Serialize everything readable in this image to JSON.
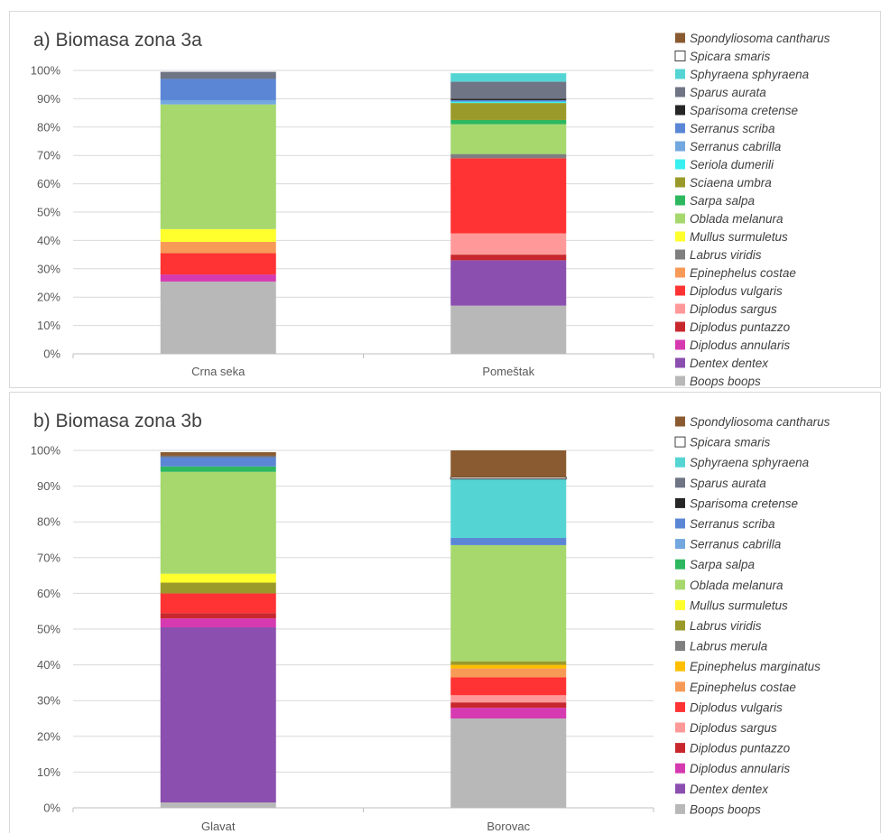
{
  "chart_data": [
    {
      "type": "bar",
      "stacked": true,
      "percent": true,
      "title": "a) Biomasa zona 3a",
      "categories": [
        "Crna seka",
        "Pomeštak"
      ],
      "ylim": [
        0,
        100
      ],
      "yticks": [
        "0%",
        "10%",
        "20%",
        "30%",
        "40%",
        "50%",
        "60%",
        "70%",
        "80%",
        "90%",
        "100%"
      ],
      "grid": true,
      "legend_position": "right",
      "series": [
        {
          "name": "Boops boops",
          "color": "#b8b8b8",
          "values": [
            25.5,
            17
          ]
        },
        {
          "name": "Dentex dentex",
          "color": "#8b4fb0",
          "values": [
            0,
            16
          ]
        },
        {
          "name": "Diplodus annularis",
          "color": "#d63ab0",
          "values": [
            2.5,
            0
          ]
        },
        {
          "name": "Diplodus puntazzo",
          "color": "#c8282d",
          "values": [
            0,
            2
          ]
        },
        {
          "name": "Diplodus sargus",
          "color": "#ff9999",
          "values": [
            0,
            7.5
          ]
        },
        {
          "name": "Diplodus vulgaris",
          "color": "#ff3333",
          "values": [
            7.5,
            26.5
          ]
        },
        {
          "name": "Epinephelus costae",
          "color": "#f79a58",
          "values": [
            4,
            0
          ]
        },
        {
          "name": "Labrus viridis",
          "color": "#7f7f7f",
          "values": [
            0,
            1.5
          ]
        },
        {
          "name": "Mullus surmuletus",
          "color": "#ffff2e",
          "values": [
            4.5,
            0
          ]
        },
        {
          "name": "Oblada melanura",
          "color": "#a6d86e",
          "values": [
            44,
            10.5
          ]
        },
        {
          "name": "Sarpa salpa",
          "color": "#2db860",
          "values": [
            0,
            1.5
          ]
        },
        {
          "name": "Sciaena umbra",
          "color": "#9a9a2a",
          "values": [
            0,
            6
          ]
        },
        {
          "name": "Seriola dumerili",
          "color": "#38f0f0",
          "values": [
            0,
            0.5
          ]
        },
        {
          "name": "Serranus cabrilla",
          "color": "#72a7e0",
          "values": [
            1.5,
            0
          ]
        },
        {
          "name": "Serranus scriba",
          "color": "#5b86d6",
          "values": [
            7.5,
            0.5
          ]
        },
        {
          "name": "Sparisoma cretense",
          "color": "#262626",
          "values": [
            0,
            0.5
          ]
        },
        {
          "name": "Sparus aurata",
          "color": "#6f7585",
          "values": [
            2.5,
            6
          ]
        },
        {
          "name": "Sphyraena sphyraena",
          "color": "#55d4d4",
          "values": [
            0,
            3
          ]
        },
        {
          "name": "Spicara smaris",
          "color": "#ffffff",
          "values": [
            0,
            0
          ]
        },
        {
          "name": "Spondyliosoma cantharus",
          "color": "#8a5a30",
          "values": [
            0,
            0
          ]
        }
      ]
    },
    {
      "type": "bar",
      "stacked": true,
      "percent": true,
      "title": "b) Biomasa zona 3b",
      "categories": [
        "Glavat",
        "Borovac"
      ],
      "ylim": [
        0,
        100
      ],
      "yticks": [
        "0%",
        "10%",
        "20%",
        "30%",
        "40%",
        "50%",
        "60%",
        "70%",
        "80%",
        "90%",
        "100%"
      ],
      "grid": true,
      "legend_position": "right",
      "series": [
        {
          "name": "Boops boops",
          "color": "#b8b8b8",
          "values": [
            1.5,
            25
          ]
        },
        {
          "name": "Dentex dentex",
          "color": "#8b4fb0",
          "values": [
            49,
            0
          ]
        },
        {
          "name": "Diplodus annularis",
          "color": "#d63ab0",
          "values": [
            2.5,
            3
          ]
        },
        {
          "name": "Diplodus puntazzo",
          "color": "#c8282d",
          "values": [
            1.5,
            1.5
          ]
        },
        {
          "name": "Diplodus sargus",
          "color": "#ff9999",
          "values": [
            0,
            2
          ]
        },
        {
          "name": "Diplodus vulgaris",
          "color": "#ff3333",
          "values": [
            5.5,
            5
          ]
        },
        {
          "name": "Epinephelus costae",
          "color": "#f79a58",
          "values": [
            0,
            2.5
          ]
        },
        {
          "name": "Epinephelus marginatus",
          "color": "#ffbf00",
          "values": [
            0,
            1
          ]
        },
        {
          "name": "Labrus merula",
          "color": "#7f7f7f",
          "values": [
            0,
            0
          ]
        },
        {
          "name": "Labrus viridis",
          "color": "#9a9a2a",
          "values": [
            3,
            1
          ]
        },
        {
          "name": "Mullus surmuletus",
          "color": "#ffff2e",
          "values": [
            2.5,
            0
          ]
        },
        {
          "name": "Oblada melanura",
          "color": "#a6d86e",
          "values": [
            28.5,
            32.5
          ]
        },
        {
          "name": "Sarpa salpa",
          "color": "#2db860",
          "values": [
            1.5,
            0
          ]
        },
        {
          "name": "Serranus cabrilla",
          "color": "#72a7e0",
          "values": [
            0,
            0
          ]
        },
        {
          "name": "Serranus scriba",
          "color": "#5b86d6",
          "values": [
            2.5,
            2
          ]
        },
        {
          "name": "Sparisoma cretense",
          "color": "#262626",
          "values": [
            0,
            0
          ]
        },
        {
          "name": "Sparus aurata",
          "color": "#6f7585",
          "values": [
            0.5,
            0
          ]
        },
        {
          "name": "Sphyraena sphyraena",
          "color": "#55d4d4",
          "values": [
            0,
            16.5
          ]
        },
        {
          "name": "Spicara smaris",
          "color": "#ffffff",
          "values": [
            0,
            0.5
          ]
        },
        {
          "name": "Spondyliosoma cantharus",
          "color": "#8a5a30",
          "values": [
            1,
            7.5
          ]
        }
      ]
    }
  ]
}
